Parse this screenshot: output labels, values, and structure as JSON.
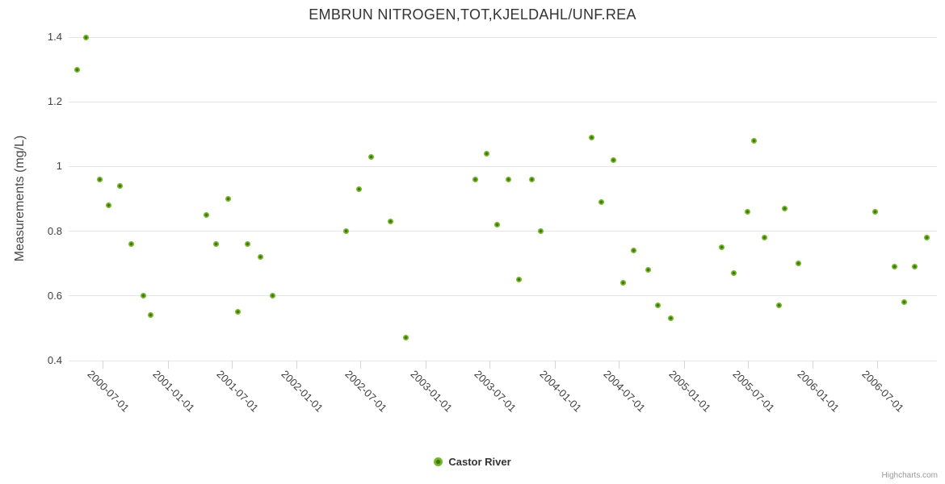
{
  "credits": "Highcharts.com",
  "colors": {
    "marker_fill": "#74b62a",
    "marker_core": "#3e7a10",
    "gridline": "#e6e6e6",
    "axis_line": "#ccd6eb",
    "title_text": "#333333",
    "tick_text": "#3f3f3f",
    "credits_text": "#999999"
  },
  "chart_data": {
    "type": "scatter",
    "title": "EMBRUN NITROGEN,TOT,KJELDAHL/UNF.REA",
    "xlabel": "",
    "ylabel": "Measurements (mg/L)",
    "ylim": [
      0.4,
      1.4
    ],
    "yticks": [
      0.4,
      0.6,
      0.8,
      1,
      1.2,
      1.4
    ],
    "ytick_labels": [
      "0.4",
      "0.6",
      "0.8",
      "1",
      "1.2",
      "1.4"
    ],
    "x_axis_range": [
      "2000-03-27",
      "2006-12-18"
    ],
    "xticks": [
      "2000-07-01",
      "2001-01-01",
      "2001-07-01",
      "2002-01-01",
      "2002-07-01",
      "2003-01-01",
      "2003-07-01",
      "2004-01-01",
      "2004-07-01",
      "2005-01-01",
      "2005-07-01",
      "2006-01-01",
      "2006-07-01"
    ],
    "grid": true,
    "legend_position": "bottom-center",
    "series": [
      {
        "name": "Castor River",
        "points": [
          [
            "2000-04-21",
            1.3
          ],
          [
            "2000-05-14",
            1.4
          ],
          [
            "2000-06-24",
            0.96
          ],
          [
            "2000-07-19",
            0.88
          ],
          [
            "2000-08-18",
            0.94
          ],
          [
            "2000-09-21",
            0.76
          ],
          [
            "2000-10-25",
            0.6
          ],
          [
            "2000-11-15",
            0.54
          ],
          [
            "2001-04-21",
            0.85
          ],
          [
            "2001-05-19",
            0.76
          ],
          [
            "2001-06-22",
            0.9
          ],
          [
            "2001-07-19",
            0.55
          ],
          [
            "2001-08-16",
            0.76
          ],
          [
            "2001-09-21",
            0.72
          ],
          [
            "2001-10-25",
            0.6
          ],
          [
            "2002-05-21",
            0.8
          ],
          [
            "2002-06-26",
            0.93
          ],
          [
            "2002-07-31",
            1.03
          ],
          [
            "2002-09-23",
            0.83
          ],
          [
            "2002-11-06",
            0.47
          ],
          [
            "2003-05-21",
            0.96
          ],
          [
            "2003-06-22",
            1.04
          ],
          [
            "2003-07-22",
            0.82
          ],
          [
            "2003-08-23",
            0.96
          ],
          [
            "2003-09-23",
            0.65
          ],
          [
            "2003-10-28",
            0.96
          ],
          [
            "2003-11-24",
            0.8
          ],
          [
            "2004-04-14",
            1.09
          ],
          [
            "2004-05-12",
            0.89
          ],
          [
            "2004-06-15",
            1.02
          ],
          [
            "2004-07-12",
            0.64
          ],
          [
            "2004-08-11",
            0.74
          ],
          [
            "2004-09-23",
            0.68
          ],
          [
            "2004-10-19",
            0.57
          ],
          [
            "2004-11-24",
            0.53
          ],
          [
            "2005-04-19",
            0.75
          ],
          [
            "2005-05-23",
            0.67
          ],
          [
            "2005-06-29",
            0.86
          ],
          [
            "2005-07-19",
            1.08
          ],
          [
            "2005-08-16",
            0.78
          ],
          [
            "2005-09-28",
            0.57
          ],
          [
            "2005-10-14",
            0.87
          ],
          [
            "2005-11-22",
            0.7
          ],
          [
            "2006-06-26",
            0.86
          ],
          [
            "2006-08-20",
            0.69
          ],
          [
            "2006-09-17",
            0.58
          ],
          [
            "2006-10-16",
            0.69
          ],
          [
            "2006-11-20",
            0.78
          ]
        ]
      }
    ]
  }
}
